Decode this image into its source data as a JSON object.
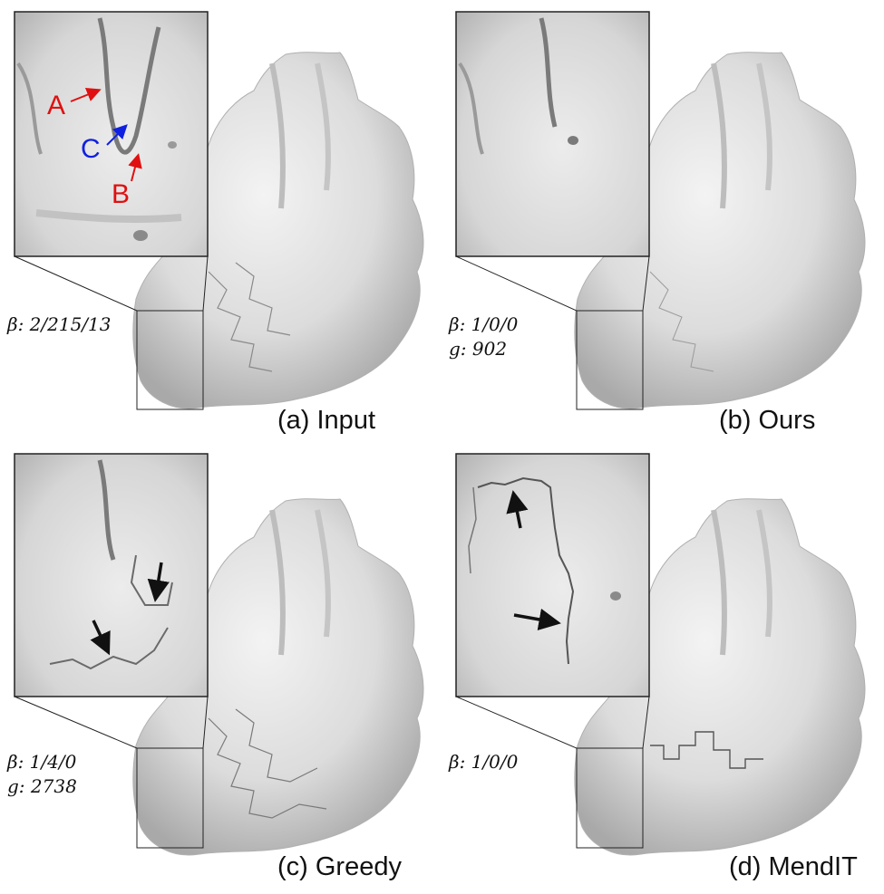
{
  "figure": {
    "panels": [
      {
        "id": "a",
        "caption": "(a) Input",
        "metrics": [
          "β: 2/215/13"
        ],
        "zoom_labels": [
          {
            "text": "A",
            "color": "#e01010"
          },
          {
            "text": "C",
            "color": "#1020e0"
          },
          {
            "text": "B",
            "color": "#e01010"
          }
        ],
        "arrow_color_red": "#e01010",
        "arrow_color_blue": "#1020e0"
      },
      {
        "id": "b",
        "caption": "(b) Ours",
        "metrics": [
          "β: 1/0/0",
          "g: 902"
        ]
      },
      {
        "id": "c",
        "caption": "(c) Greedy",
        "metrics": [
          "β: 1/4/0",
          "g: 2738"
        ]
      },
      {
        "id": "d",
        "caption": "(d) MendIT",
        "metrics": [
          "β: 1/0/0"
        ]
      }
    ],
    "colors": {
      "mesh_light": "#ececec",
      "mesh_mid": "#cfcfcf",
      "mesh_dark": "#9a9a9a",
      "frame": "#222222",
      "arrow": "#111111"
    }
  }
}
